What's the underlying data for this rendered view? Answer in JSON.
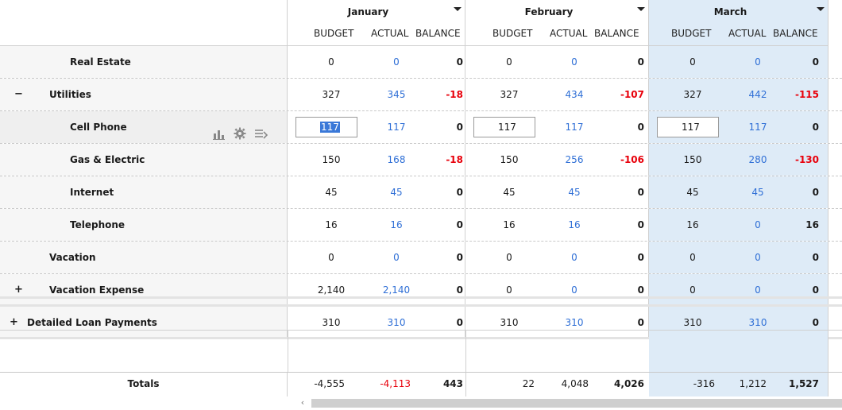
{
  "months": [
    {
      "name": "January",
      "selected": false
    },
    {
      "name": "February",
      "selected": false
    },
    {
      "name": "March",
      "selected": true
    }
  ],
  "col_headers": {
    "budget": "BUDGET",
    "actual": "ACTUAL",
    "balance": "BALANCE"
  },
  "rows": [
    {
      "label": "Real Estate",
      "expander": "",
      "indent": 2,
      "vals": [
        [
          "0",
          "0",
          "0"
        ],
        [
          "0",
          "0",
          "0"
        ],
        [
          "0",
          "0",
          "0"
        ]
      ]
    },
    {
      "label": "Utilities",
      "expander": "−",
      "indent": 1,
      "vals": [
        [
          "327",
          "345",
          "-18"
        ],
        [
          "327",
          "434",
          "-107"
        ],
        [
          "327",
          "442",
          "-115"
        ]
      ]
    },
    {
      "label": "Cell Phone",
      "expander": "",
      "indent": 2,
      "active": true,
      "vals": [
        [
          "117",
          "117",
          "0"
        ],
        [
          "117",
          "117",
          "0"
        ],
        [
          "117",
          "117",
          "0"
        ]
      ]
    },
    {
      "label": "Gas & Electric",
      "expander": "",
      "indent": 2,
      "vals": [
        [
          "150",
          "168",
          "-18"
        ],
        [
          "150",
          "256",
          "-106"
        ],
        [
          "150",
          "280",
          "-130"
        ]
      ]
    },
    {
      "label": "Internet",
      "expander": "",
      "indent": 2,
      "vals": [
        [
          "45",
          "45",
          "0"
        ],
        [
          "45",
          "45",
          "0"
        ],
        [
          "45",
          "45",
          "0"
        ]
      ]
    },
    {
      "label": "Telephone",
      "expander": "",
      "indent": 2,
      "vals": [
        [
          "16",
          "16",
          "0"
        ],
        [
          "16",
          "16",
          "0"
        ],
        [
          "16",
          "0",
          "16"
        ]
      ]
    },
    {
      "label": "Vacation",
      "expander": "",
      "indent": 1.5,
      "vals": [
        [
          "0",
          "0",
          "0"
        ],
        [
          "0",
          "0",
          "0"
        ],
        [
          "0",
          "0",
          "0"
        ]
      ]
    },
    {
      "label": "Vacation Expense",
      "expander": "+",
      "indent": 1,
      "solid": true,
      "vals": [
        [
          "2,140",
          "2,140",
          "0"
        ],
        [
          "0",
          "0",
          "0"
        ],
        [
          "0",
          "0",
          "0"
        ]
      ]
    },
    {
      "label": "Detailed Loan Payments",
      "expander": "+",
      "indent": 0,
      "solid": true,
      "vals": [
        [
          "310",
          "310",
          "0"
        ],
        [
          "310",
          "310",
          "0"
        ],
        [
          "310",
          "310",
          "0"
        ]
      ]
    }
  ],
  "row_icons": [
    "bar-chart-icon",
    "gear-icon",
    "transfer-icon"
  ],
  "totals": {
    "label": "Totals",
    "vals": [
      [
        "-4,555",
        "-4,113",
        "443"
      ],
      [
        "22",
        "4,048",
        "4,026"
      ],
      [
        "-316",
        "1,212",
        "1,527"
      ]
    ],
    "actual_red": [
      true,
      false,
      false
    ]
  },
  "colors": {
    "actual": "#2f6fd6",
    "negative": "#e8000b",
    "selected_month": "#deebf7"
  },
  "scroll_left_icon": "‹"
}
